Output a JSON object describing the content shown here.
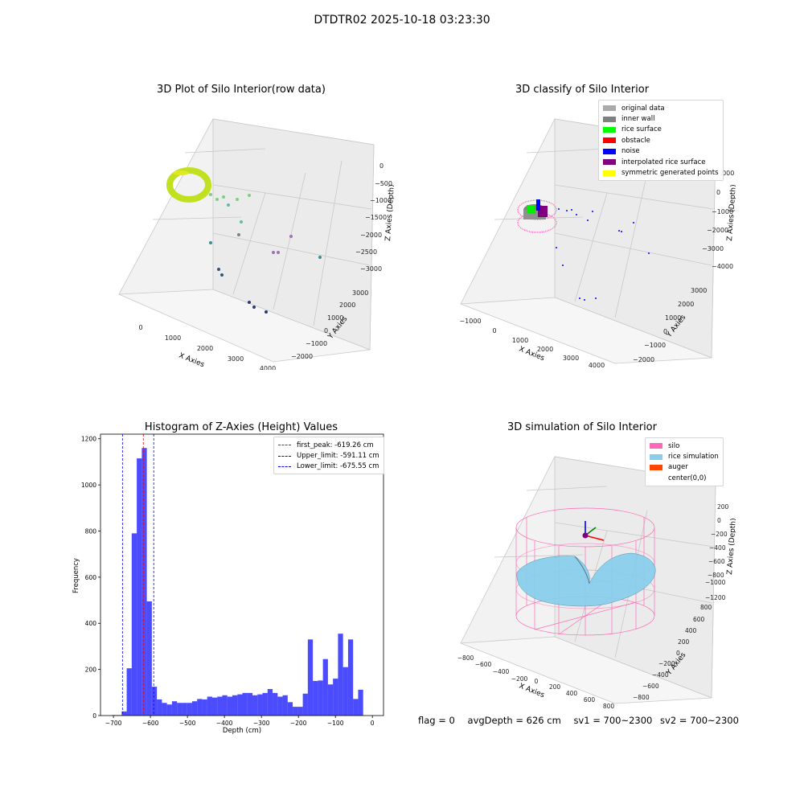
{
  "suptitle": "DTDTR02 2025-10-18 03:23:30",
  "colors": {
    "original": "#aaaaaa",
    "inner_wall": "#808080",
    "rice_surface": "#00ff00",
    "obstacle": "#ff0000",
    "noise": "#0000ff",
    "interpolated": "#800080",
    "symmetric": "#ffff00",
    "silo": "#ff69b4",
    "rice_sim": "#87ceeb",
    "auger": "#ff4500",
    "hist_bar": "#0000ff"
  },
  "panels": {
    "raw": {
      "title": "3D Plot of Silo Interior(row data)",
      "x_label": "X Axies",
      "y_label": "Y Axies",
      "z_label": "Z Axies (Depth)",
      "x_ticks": [
        "0",
        "1000",
        "2000",
        "3000",
        "4000"
      ],
      "y_ticks": [
        "−2000",
        "−1000",
        "0",
        "1000",
        "2000",
        "3000"
      ],
      "z_ticks": [
        "0",
        "−500",
        "−1000",
        "−1500",
        "−2000",
        "−2500",
        "−3000"
      ]
    },
    "classify": {
      "title": "3D classify of Silo Interior",
      "x_label": "X Axies",
      "y_label": "Y Axies",
      "z_label": "Z Axies (Depth)",
      "x_ticks": [
        "−1000",
        "0",
        "1000",
        "2000",
        "3000",
        "4000"
      ],
      "y_ticks": [
        "−2000",
        "−1000",
        "0",
        "1000",
        "2000",
        "3000"
      ],
      "z_ticks": [
        "1000",
        "0",
        "−1000",
        "−2000",
        "−3000",
        "−4000"
      ],
      "legend": [
        "original data",
        "inner wall",
        "rice surface",
        "obstacle",
        "noise",
        "interpolated rice surface",
        "symmetric generated points"
      ]
    },
    "simulation": {
      "title": "3D simulation of Silo Interior",
      "x_label": "X Axies",
      "y_label": "Y Axies",
      "z_label": "Z Axies (Depth)",
      "x_ticks": [
        "−800",
        "−600",
        "−400",
        "−200",
        "0",
        "200",
        "400",
        "600",
        "800"
      ],
      "y_ticks": [
        "−800",
        "−600",
        "−400",
        "−200",
        "0",
        "200",
        "400",
        "600",
        "800"
      ],
      "z_ticks": [
        "200",
        "0",
        "−200",
        "−400",
        "−600",
        "−800",
        "−1000",
        "−1200"
      ],
      "legend": [
        "silo",
        "rice simulation",
        "auger",
        "center(0,0)"
      ]
    }
  },
  "footer": {
    "flag": "flag = 0",
    "avg_depth": "avgDepth = 626 cm",
    "sv1": "sv1 = 700~2300",
    "sv2": "sv2 = 700~2300"
  },
  "chart_data": {
    "type": "bar",
    "title": "Histogram of Z-Axies (Height) Values",
    "xlabel": "Depth (cm)",
    "ylabel": "Frequency",
    "xlim": [
      -735,
      30
    ],
    "ylim": [
      0,
      1220
    ],
    "x_ticks": [
      -700,
      -600,
      -500,
      -400,
      -300,
      -200,
      -100,
      0
    ],
    "y_ticks": [
      0,
      200,
      400,
      600,
      800,
      1000,
      1200
    ],
    "bin_start": -705,
    "bin_width": 13.6,
    "values": [
      2,
      2,
      18,
      205,
      790,
      1115,
      1160,
      495,
      125,
      70,
      55,
      48,
      62,
      55,
      55,
      55,
      62,
      72,
      70,
      82,
      78,
      82,
      88,
      82,
      88,
      92,
      98,
      98,
      88,
      92,
      98,
      115,
      98,
      82,
      88,
      58,
      38,
      38,
      95,
      330,
      150,
      152,
      245,
      135,
      160,
      355,
      210,
      330,
      72,
      112
    ],
    "vlines": [
      {
        "name": "first_peak: -619.26 cm",
        "x": -619.26,
        "color": "#ff0000"
      },
      {
        "name": "Upper_limit: -591.11 cm",
        "x": -591.11,
        "color": "#0000ff"
      },
      {
        "name": "Lower_limit: -675.55 cm",
        "x": -675.55,
        "color": "#0000ff"
      }
    ],
    "grid": false,
    "legend": "top-right"
  }
}
